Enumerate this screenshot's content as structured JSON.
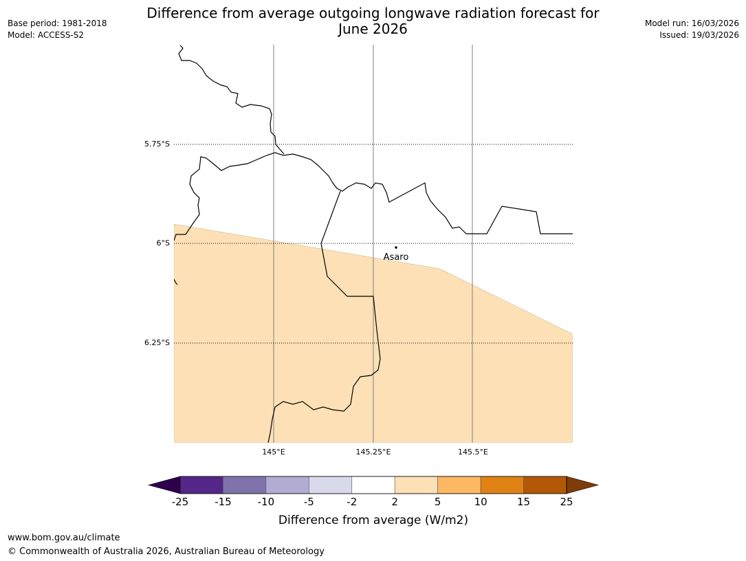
{
  "header": {
    "title_line1": "Difference from average outgoing longwave radiation forecast for",
    "title_line2": "June 2026",
    "base_period": "Base period: 1981-2018",
    "model": "Model: ACCESS-S2",
    "model_run": "Model run: 16/03/2026",
    "issued": "Issued: 19/03/2026"
  },
  "map": {
    "lat_labels": [
      "5.75°S",
      "6°S",
      "6.25°S"
    ],
    "lon_labels": [
      "145°E",
      "145.25°E",
      "145.5°E"
    ],
    "place_label": "Asaro",
    "anomaly_fill_color": "#fde0b6",
    "anomaly_category": "2 to 5"
  },
  "colorbar": {
    "ticks": [
      "-25",
      "-15",
      "-10",
      "-5",
      "-2",
      "2",
      "5",
      "10",
      "15",
      "25"
    ],
    "colors": [
      "#2d004b",
      "#542788",
      "#8073ac",
      "#b2abd2",
      "#d8daeb",
      "#ffffff",
      "#fee0b6",
      "#fdb863",
      "#e08214",
      "#b35806",
      "#7f3b08"
    ],
    "label": "Difference from average (W/m2)"
  },
  "footer": {
    "url": "www.bom.gov.au/climate",
    "copyright": "© Commonwealth of Australia 2026, Australian Bureau of Meteorology"
  }
}
